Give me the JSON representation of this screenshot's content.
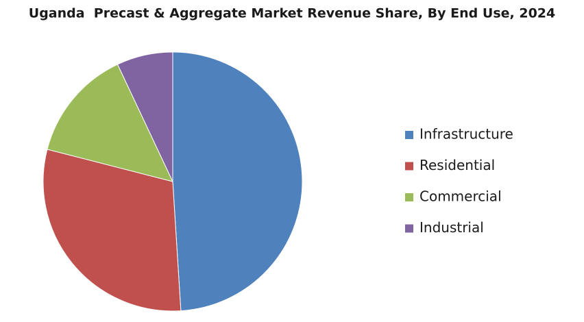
{
  "chart_data": {
    "type": "pie",
    "title": "Uganda  Precast & Aggregate Market Revenue Share, By End Use, 2024",
    "categories": [
      "Infrastructure",
      "Residential",
      "Commercial",
      "Industrial"
    ],
    "values": [
      49,
      30,
      14,
      7
    ],
    "colors": [
      "#4f81bd",
      "#c0504d",
      "#9bbb59",
      "#8064a2"
    ],
    "legend": "right"
  }
}
